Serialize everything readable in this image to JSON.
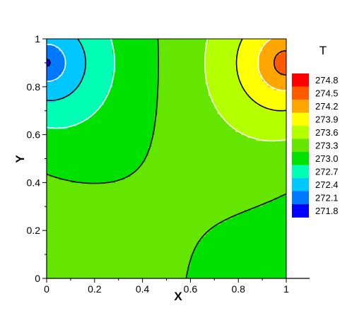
{
  "chart_data": {
    "type": "heatmap",
    "title": "",
    "xlabel": "X",
    "ylabel": "Y",
    "xlim": [
      0,
      1
    ],
    "ylim": [
      0,
      1
    ],
    "x_ticks": [
      0,
      0.2,
      0.4,
      0.6,
      0.8,
      1
    ],
    "x_tick_labels": [
      "0",
      "0.2",
      "0.4",
      "0.6",
      "0.8",
      "1"
    ],
    "y_ticks": [
      0,
      0.2,
      0.4,
      0.6,
      0.8,
      1
    ],
    "y_tick_labels": [
      "0",
      "0.2",
      "0.4",
      "0.6",
      "0.8",
      "1"
    ],
    "legend": {
      "title": "T",
      "placement": "right",
      "levels": [
        "274.8",
        "274.5",
        "274.2",
        "273.9",
        "273.6",
        "273.3",
        "273.0",
        "272.7",
        "272.4",
        "272.1",
        "271.8"
      ],
      "colors": [
        "#ff0000",
        "#ff5a00",
        "#ffa500",
        "#ffff00",
        "#b4ff00",
        "#64e600",
        "#00e100",
        "#00ffb4",
        "#00c8ff",
        "#0078ff",
        "#0000ff"
      ]
    },
    "cold_source": {
      "x": 0,
      "y": 0.9,
      "value": 271.8
    },
    "hot_source": {
      "x": 1,
      "y": 0.9,
      "value": 274.8
    }
  }
}
